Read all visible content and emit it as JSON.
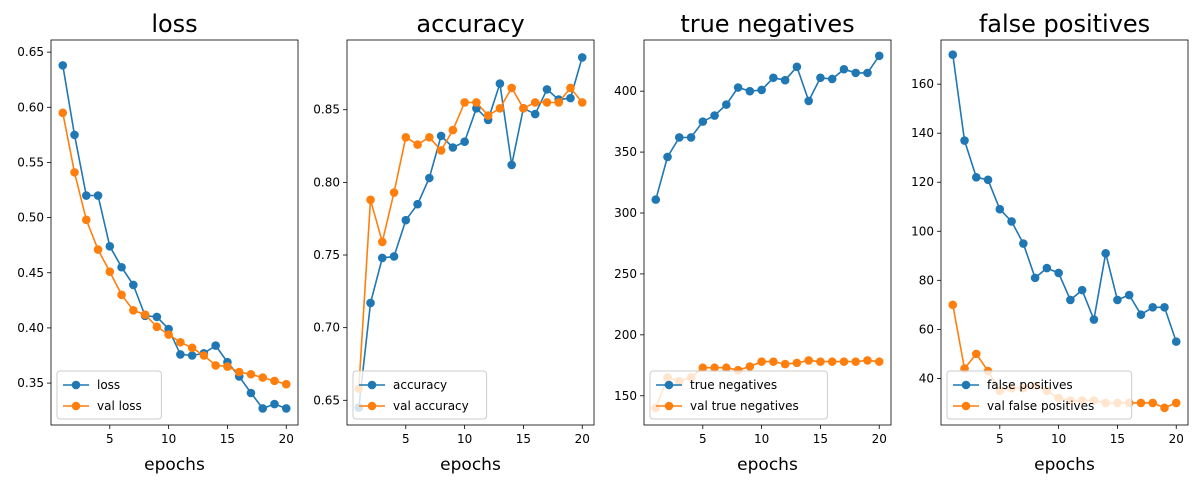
{
  "chart_data": [
    {
      "type": "line",
      "title": "loss",
      "xlabel": "epochs",
      "ylabel": "",
      "xlim": [
        0,
        21
      ],
      "ylim": [
        0.312,
        0.661
      ],
      "xticks": [
        5,
        10,
        15,
        20
      ],
      "yticks": [
        0.35,
        0.4,
        0.45,
        0.5,
        0.55,
        0.6,
        0.65
      ],
      "ytick_labels": [
        "0.35",
        "0.40",
        "0.45",
        "0.50",
        "0.55",
        "0.60",
        "0.65"
      ],
      "legend_position": "lower-left",
      "x": [
        1,
        2,
        3,
        4,
        5,
        6,
        7,
        8,
        9,
        10,
        11,
        12,
        13,
        14,
        15,
        16,
        17,
        18,
        19,
        20
      ],
      "series": [
        {
          "name": "loss",
          "color": "#1f77b4",
          "values": [
            0.638,
            0.575,
            0.52,
            0.52,
            0.474,
            0.455,
            0.439,
            0.411,
            0.41,
            0.399,
            0.376,
            0.375,
            0.377,
            0.384,
            0.369,
            0.356,
            0.341,
            0.327,
            0.331,
            0.327
          ]
        },
        {
          "name": "val loss",
          "color": "#ff7f0e",
          "values": [
            0.595,
            0.541,
            0.498,
            0.471,
            0.451,
            0.43,
            0.416,
            0.412,
            0.401,
            0.394,
            0.387,
            0.382,
            0.375,
            0.366,
            0.365,
            0.36,
            0.358,
            0.355,
            0.352,
            0.349
          ]
        }
      ]
    },
    {
      "type": "line",
      "title": "accuracy",
      "xlabel": "epochs",
      "ylabel": "",
      "xlim": [
        0,
        21
      ],
      "ylim": [
        0.633,
        0.898
      ],
      "xticks": [
        5,
        10,
        15,
        20
      ],
      "yticks": [
        0.65,
        0.7,
        0.75,
        0.8,
        0.85
      ],
      "ytick_labels": [
        "0.65",
        "0.70",
        "0.75",
        "0.80",
        "0.85"
      ],
      "legend_position": "lower-left",
      "x": [
        1,
        2,
        3,
        4,
        5,
        6,
        7,
        8,
        9,
        10,
        11,
        12,
        13,
        14,
        15,
        16,
        17,
        18,
        19,
        20
      ],
      "series": [
        {
          "name": "accuracy",
          "color": "#1f77b4",
          "values": [
            0.645,
            0.717,
            0.748,
            0.749,
            0.774,
            0.785,
            0.803,
            0.832,
            0.824,
            0.828,
            0.851,
            0.843,
            0.868,
            0.812,
            0.851,
            0.847,
            0.864,
            0.857,
            0.858,
            0.886
          ]
        },
        {
          "name": "val accuracy",
          "color": "#ff7f0e",
          "values": [
            0.658,
            0.788,
            0.759,
            0.793,
            0.831,
            0.826,
            0.831,
            0.822,
            0.836,
            0.855,
            0.855,
            0.846,
            0.851,
            0.865,
            0.851,
            0.855,
            0.855,
            0.855,
            0.865,
            0.855
          ]
        }
      ]
    },
    {
      "type": "line",
      "title": "true negatives",
      "xlabel": "epochs",
      "ylabel": "",
      "xlim": [
        0,
        21
      ],
      "ylim": [
        126,
        442
      ],
      "xticks": [
        5,
        10,
        15,
        20
      ],
      "yticks": [
        150,
        200,
        250,
        300,
        350,
        400
      ],
      "ytick_labels": [
        "150",
        "200",
        "250",
        "300",
        "350",
        "400"
      ],
      "legend_position": "lower-left",
      "x": [
        1,
        2,
        3,
        4,
        5,
        6,
        7,
        8,
        9,
        10,
        11,
        12,
        13,
        14,
        15,
        16,
        17,
        18,
        19,
        20
      ],
      "series": [
        {
          "name": "true negatives",
          "color": "#1f77b4",
          "values": [
            311,
            346,
            362,
            362,
            375,
            380,
            389,
            403,
            400,
            401,
            411,
            409,
            420,
            392,
            411,
            410,
            418,
            415,
            415,
            429
          ]
        },
        {
          "name": "val true negatives",
          "color": "#ff7f0e",
          "values": [
            140,
            165,
            162,
            165,
            173,
            173,
            173,
            171,
            174,
            178,
            178,
            176,
            177,
            179,
            178,
            178,
            178,
            178,
            179,
            178
          ]
        }
      ]
    },
    {
      "type": "line",
      "title": "false positives",
      "xlabel": "epochs",
      "ylabel": "",
      "xlim": [
        0,
        21
      ],
      "ylim": [
        21,
        178
      ],
      "xticks": [
        5,
        10,
        15,
        20
      ],
      "yticks": [
        40,
        60,
        80,
        100,
        120,
        140,
        160
      ],
      "ytick_labels": [
        "40",
        "60",
        "80",
        "100",
        "120",
        "140",
        "160"
      ],
      "legend_position": "lower-left",
      "x": [
        1,
        2,
        3,
        4,
        5,
        6,
        7,
        8,
        9,
        10,
        11,
        12,
        13,
        14,
        15,
        16,
        17,
        18,
        19,
        20
      ],
      "series": [
        {
          "name": "false positives",
          "color": "#1f77b4",
          "values": [
            172,
            137,
            122,
            121,
            109,
            104,
            95,
            81,
            85,
            83,
            72,
            76,
            64,
            91,
            72,
            74,
            66,
            69,
            69,
            55
          ]
        },
        {
          "name": "val false positives",
          "color": "#ff7f0e",
          "values": [
            70,
            44,
            50,
            43,
            35,
            36,
            36,
            37,
            35,
            32,
            31,
            31,
            31,
            30,
            30,
            30,
            30,
            30,
            28,
            30
          ]
        }
      ]
    }
  ]
}
